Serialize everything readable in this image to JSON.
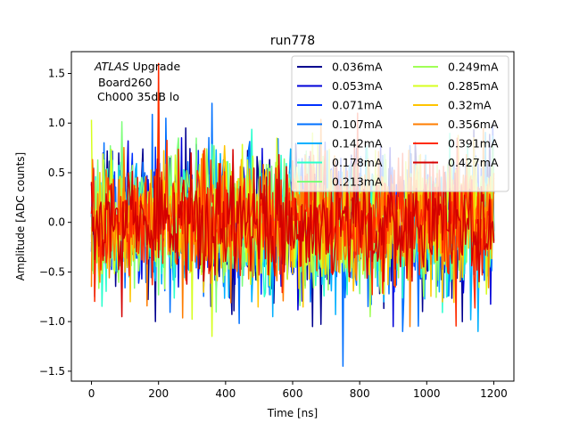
{
  "chart_data": {
    "type": "line",
    "title": "run778",
    "xlabel": "Time [ns]",
    "ylabel": "Amplitude [ADC counts]",
    "xlim": [
      -60,
      1260
    ],
    "ylim": [
      -1.6,
      1.72
    ],
    "xticks": [
      0,
      200,
      400,
      600,
      800,
      1000,
      1200
    ],
    "yticks": [
      -1.5,
      -1.0,
      -0.5,
      0.0,
      0.5,
      1.0,
      1.5
    ],
    "xtick_labels": [
      "0",
      "200",
      "400",
      "600",
      "800",
      "1000",
      "1200"
    ],
    "ytick_labels": [
      "−1.5",
      "−1.0",
      "−0.5",
      "0.0",
      "0.5",
      "1.0",
      "1.5"
    ],
    "grid": false,
    "legend_placement": "upper-right, two columns",
    "annotation": {
      "line1_italic": "ATLAS",
      "line1_rest": " Upgrade",
      "line2": "Board260",
      "line3": "Ch000 35dB lo"
    },
    "x_range_ns": [
      0,
      1200
    ],
    "sample_step_ns": 3.125,
    "series": [
      {
        "name": "0.036mA",
        "color": "#00008f",
        "approx_std": 0.33,
        "notable_points": [
          [
            660,
            -1.05
          ],
          [
            280,
            0.95
          ]
        ]
      },
      {
        "name": "0.053mA",
        "color": "#0000d8",
        "approx_std": 0.33,
        "notable_points": [
          [
            900,
            -1.05
          ],
          [
            110,
            0.82
          ]
        ]
      },
      {
        "name": "0.071mA",
        "color": "#0030ff",
        "approx_std": 0.33,
        "notable_points": [
          [
            10,
            -0.75
          ]
        ]
      },
      {
        "name": "0.107mA",
        "color": "#0070ff",
        "approx_std": 0.33,
        "notable_points": [
          [
            750,
            -1.45
          ],
          [
            360,
            1.2
          ]
        ]
      },
      {
        "name": "0.142mA",
        "color": "#00b0ff",
        "approx_std": 0.32,
        "notable_points": [
          [
            540,
            -0.95
          ]
        ]
      },
      {
        "name": "0.178mA",
        "color": "#29ffce",
        "approx_std": 0.31,
        "notable_points": []
      },
      {
        "name": "0.213mA",
        "color": "#7dff7a",
        "approx_std": 0.31,
        "notable_points": [
          [
            260,
            0.85
          ]
        ]
      },
      {
        "name": "0.249mA",
        "color": "#a0ff56",
        "approx_std": 0.31,
        "notable_points": [
          [
            830,
            -0.95
          ]
        ]
      },
      {
        "name": "0.285mA",
        "color": "#d7ff1f",
        "approx_std": 0.31,
        "notable_points": [
          [
            360,
            -1.15
          ],
          [
            660,
            0.9
          ]
        ]
      },
      {
        "name": "0.32mA",
        "color": "#ffc400",
        "approx_std": 0.31,
        "notable_points": [
          [
            200,
            1.35
          ]
        ]
      },
      {
        "name": "0.356mA",
        "color": "#ff7d00",
        "approx_std": 0.32,
        "notable_points": [
          [
            950,
            -1.05
          ],
          [
            1170,
            0.95
          ]
        ]
      },
      {
        "name": "0.391mA",
        "color": "#ff2b00",
        "approx_std": 0.31,
        "notable_points": [
          [
            200,
            1.6
          ]
        ]
      },
      {
        "name": "0.427mA",
        "color": "#d40000",
        "approx_std": 0.29,
        "notable_points": [
          [
            90,
            -0.95
          ]
        ]
      }
    ]
  }
}
